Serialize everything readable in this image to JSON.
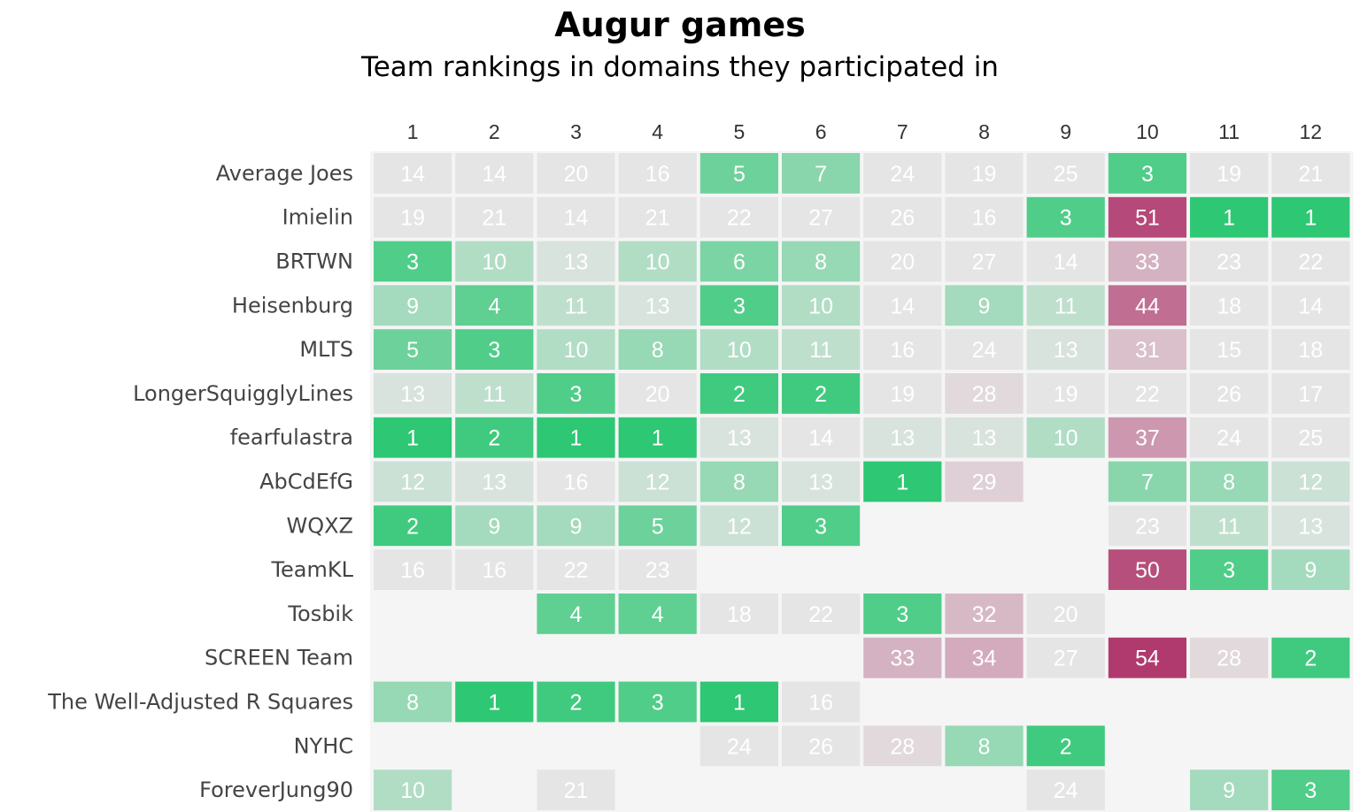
{
  "chart_data": {
    "type": "heatmap",
    "title": "Augur games",
    "subtitle": "Team rankings in domains they participated in",
    "columns": [
      "1",
      "2",
      "3",
      "4",
      "5",
      "6",
      "7",
      "8",
      "9",
      "10",
      "11",
      "12"
    ],
    "rows": [
      "Average Joes",
      "Imielin",
      "BRTWN",
      "Heisenburg",
      "MLTS",
      "LongerSquigglyLines",
      "fearfulastra",
      "AbCdEfG",
      "WQXZ",
      "TeamKL",
      "Tosbik",
      "SCREEN Team",
      "The Well-Adjusted R Squares",
      "NYHC",
      "ForeverJung90"
    ],
    "values": [
      [
        14,
        14,
        20,
        16,
        5,
        7,
        24,
        19,
        25,
        3,
        19,
        21
      ],
      [
        19,
        21,
        14,
        21,
        22,
        27,
        26,
        16,
        3,
        51,
        1,
        1
      ],
      [
        3,
        10,
        13,
        10,
        6,
        8,
        20,
        27,
        14,
        33,
        23,
        22
      ],
      [
        9,
        4,
        11,
        13,
        3,
        10,
        14,
        9,
        11,
        44,
        18,
        14
      ],
      [
        5,
        3,
        10,
        8,
        10,
        11,
        16,
        24,
        13,
        31,
        15,
        18
      ],
      [
        13,
        11,
        3,
        20,
        2,
        2,
        19,
        28,
        19,
        22,
        26,
        17
      ],
      [
        1,
        2,
        1,
        1,
        13,
        14,
        13,
        13,
        10,
        37,
        24,
        25
      ],
      [
        12,
        13,
        16,
        12,
        8,
        13,
        1,
        29,
        null,
        7,
        8,
        12
      ],
      [
        2,
        9,
        9,
        5,
        12,
        3,
        null,
        null,
        null,
        23,
        11,
        13
      ],
      [
        16,
        16,
        22,
        23,
        null,
        null,
        null,
        null,
        null,
        50,
        3,
        9
      ],
      [
        null,
        null,
        4,
        4,
        18,
        22,
        3,
        32,
        20,
        null,
        null,
        null
      ],
      [
        null,
        null,
        null,
        null,
        null,
        null,
        33,
        34,
        27,
        54,
        28,
        2
      ],
      [
        8,
        1,
        2,
        3,
        1,
        16,
        null,
        null,
        null,
        null,
        null,
        null
      ],
      [
        null,
        null,
        null,
        null,
        24,
        26,
        28,
        8,
        2,
        null,
        null,
        null
      ],
      [
        10,
        null,
        21,
        null,
        null,
        null,
        null,
        null,
        24,
        null,
        9,
        3
      ]
    ],
    "grid": false,
    "legend": "none",
    "colors": {
      "good": "#2ec774",
      "neutral": "#e5e5e5",
      "bad": "#b03a6e",
      "panel_bg": "#f5f5f5",
      "cell_text": "#ffffff"
    }
  }
}
